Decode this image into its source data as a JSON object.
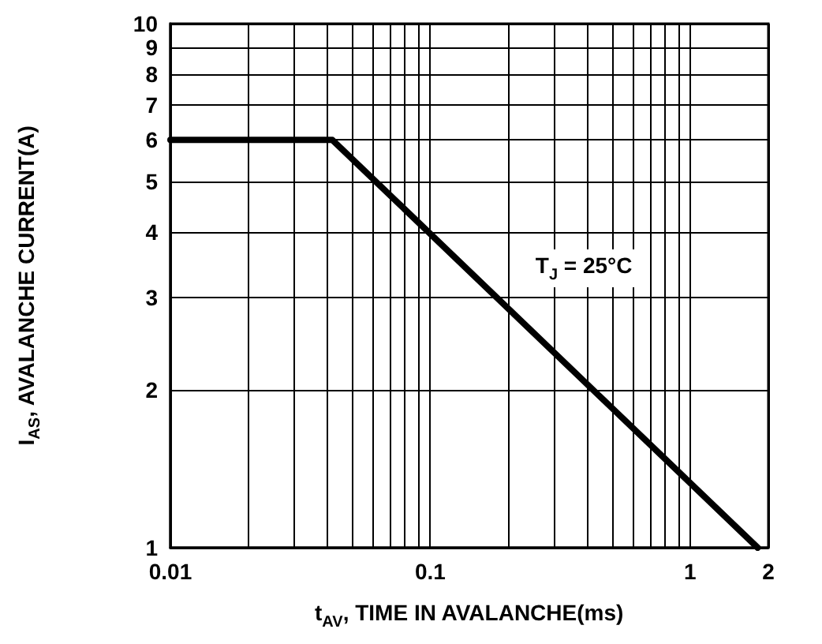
{
  "chart_data": {
    "type": "line",
    "xlabel": "t$_{AV}$, TIME IN AVALANCHE(ms)",
    "ylabel": "I$_{AS}$, AVALANCHE CURRENT(A)",
    "annotations": [
      "T$_{J}$ = 25°C"
    ],
    "x": [
      0.01,
      0.042,
      1.82
    ],
    "series": [
      {
        "color": "#000000",
        "values": [
          6,
          6,
          1
        ]
      }
    ],
    "log": "xy",
    "xlim": [
      0.01,
      2
    ],
    "ylim": [
      1,
      10
    ],
    "xticks": [
      0.01,
      {
        "value": 0.02,
        "label": null
      },
      {
        "value": 0.03,
        "label": null
      },
      {
        "value": 0.04,
        "label": null
      },
      {
        "value": 0.05,
        "label": null
      },
      {
        "value": 0.06,
        "label": null
      },
      {
        "value": 0.07,
        "label": null
      },
      {
        "value": 0.08,
        "label": null
      },
      {
        "value": 0.09,
        "label": null
      },
      0.1,
      {
        "value": 0.2,
        "label": null
      },
      {
        "value": 0.3,
        "label": null
      },
      {
        "value": 0.4,
        "label": null
      },
      {
        "value": 0.5,
        "label": null
      },
      {
        "value": 0.6,
        "label": null
      },
      {
        "value": 0.7,
        "label": null
      },
      {
        "value": 0.8,
        "label": null
      },
      {
        "value": 0.9,
        "label": null
      },
      1,
      2
    ],
    "yticks": [
      1,
      2,
      3,
      4,
      5,
      6,
      7,
      8,
      9,
      10
    ],
    "grid": true,
    "marker": "none",
    "line_style": "solid"
  }
}
